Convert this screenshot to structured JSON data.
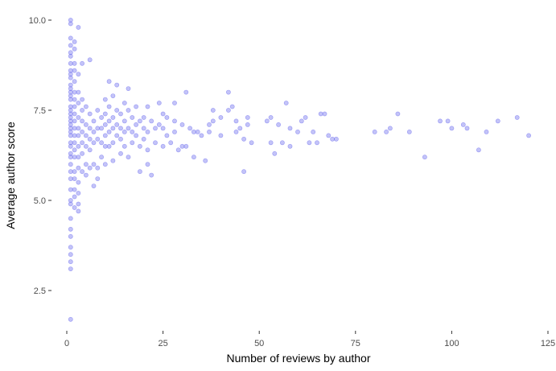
{
  "chart_data": {
    "type": "scatter",
    "title": "",
    "xlabel": "Number of reviews by author",
    "ylabel": "Average author score",
    "xlim": [
      0,
      125
    ],
    "ylim": [
      1.5,
      10.0
    ],
    "grid": false,
    "x_ticks": [
      0,
      25,
      50,
      75,
      100,
      125
    ],
    "x_tick_labels": [
      "0",
      "25",
      "50",
      "75",
      "100",
      "125"
    ],
    "y_ticks": [
      2.5,
      5.0,
      7.5,
      10.0
    ],
    "y_tick_labels": [
      "2.5",
      "5.0",
      "7.5",
      "10.0"
    ],
    "point_color": "#6a6aee",
    "series": [
      {
        "name": "authors",
        "points": [
          [
            1,
            10.0
          ],
          [
            1,
            9.9
          ],
          [
            1,
            9.5
          ],
          [
            1,
            9.3
          ],
          [
            1,
            9.1
          ],
          [
            1,
            9.0
          ],
          [
            1,
            8.8
          ],
          [
            1,
            8.6
          ],
          [
            1,
            8.5
          ],
          [
            1,
            8.4
          ],
          [
            1,
            8.2
          ],
          [
            1,
            8.1
          ],
          [
            1,
            8.0
          ],
          [
            1,
            7.9
          ],
          [
            1,
            7.8
          ],
          [
            1,
            7.6
          ],
          [
            1,
            7.5
          ],
          [
            1,
            7.4
          ],
          [
            1,
            7.3
          ],
          [
            1,
            7.2
          ],
          [
            1,
            7.1
          ],
          [
            1,
            7.0
          ],
          [
            1,
            6.9
          ],
          [
            1,
            6.8
          ],
          [
            1,
            6.6
          ],
          [
            1,
            6.5
          ],
          [
            1,
            6.3
          ],
          [
            1,
            6.2
          ],
          [
            1,
            6.0
          ],
          [
            1,
            5.8
          ],
          [
            1,
            5.6
          ],
          [
            1,
            5.3
          ],
          [
            1,
            5.0
          ],
          [
            1,
            4.9
          ],
          [
            1,
            4.5
          ],
          [
            1,
            4.2
          ],
          [
            1,
            4.0
          ],
          [
            1,
            3.7
          ],
          [
            1,
            3.5
          ],
          [
            1,
            3.3
          ],
          [
            1,
            3.1
          ],
          [
            1,
            1.7
          ],
          [
            2,
            9.4
          ],
          [
            2,
            9.2
          ],
          [
            2,
            8.8
          ],
          [
            2,
            8.6
          ],
          [
            2,
            8.3
          ],
          [
            2,
            8.0
          ],
          [
            2,
            7.8
          ],
          [
            2,
            7.6
          ],
          [
            2,
            7.4
          ],
          [
            2,
            7.2
          ],
          [
            2,
            7.0
          ],
          [
            2,
            6.8
          ],
          [
            2,
            6.6
          ],
          [
            2,
            6.4
          ],
          [
            2,
            6.2
          ],
          [
            2,
            5.8
          ],
          [
            2,
            5.6
          ],
          [
            2,
            5.3
          ],
          [
            2,
            5.1
          ],
          [
            2,
            4.8
          ],
          [
            3,
            9.8
          ],
          [
            3,
            8.5
          ],
          [
            3,
            8.0
          ],
          [
            3,
            7.7
          ],
          [
            3,
            7.3
          ],
          [
            3,
            7.0
          ],
          [
            3,
            6.8
          ],
          [
            3,
            6.5
          ],
          [
            3,
            6.2
          ],
          [
            3,
            5.9
          ],
          [
            3,
            5.5
          ],
          [
            3,
            5.2
          ],
          [
            3,
            4.9
          ],
          [
            3,
            4.7
          ],
          [
            4,
            8.8
          ],
          [
            4,
            7.8
          ],
          [
            4,
            7.5
          ],
          [
            4,
            7.2
          ],
          [
            4,
            6.9
          ],
          [
            4,
            6.6
          ],
          [
            4,
            6.3
          ],
          [
            4,
            5.8
          ],
          [
            5,
            7.6
          ],
          [
            5,
            7.1
          ],
          [
            5,
            6.8
          ],
          [
            5,
            6.5
          ],
          [
            5,
            6.0
          ],
          [
            5,
            5.7
          ],
          [
            6,
            8.9
          ],
          [
            6,
            7.4
          ],
          [
            6,
            7.0
          ],
          [
            6,
            6.7
          ],
          [
            6,
            6.4
          ],
          [
            6,
            5.9
          ],
          [
            7,
            7.2
          ],
          [
            7,
            6.9
          ],
          [
            7,
            6.6
          ],
          [
            7,
            6.0
          ],
          [
            7,
            5.4
          ],
          [
            8,
            7.5
          ],
          [
            8,
            7.0
          ],
          [
            8,
            6.7
          ],
          [
            8,
            5.9
          ],
          [
            8,
            5.6
          ],
          [
            9,
            7.3
          ],
          [
            9,
            7.0
          ],
          [
            9,
            6.6
          ],
          [
            9,
            6.2
          ],
          [
            10,
            7.8
          ],
          [
            10,
            7.4
          ],
          [
            10,
            7.1
          ],
          [
            10,
            6.8
          ],
          [
            10,
            6.5
          ],
          [
            10,
            6.0
          ],
          [
            11,
            8.3
          ],
          [
            11,
            7.6
          ],
          [
            11,
            7.2
          ],
          [
            11,
            6.9
          ],
          [
            11,
            6.5
          ],
          [
            12,
            7.9
          ],
          [
            12,
            7.3
          ],
          [
            12,
            7.0
          ],
          [
            12,
            6.6
          ],
          [
            12,
            6.1
          ],
          [
            13,
            8.2
          ],
          [
            13,
            7.5
          ],
          [
            13,
            7.1
          ],
          [
            13,
            6.8
          ],
          [
            14,
            7.4
          ],
          [
            14,
            7.0
          ],
          [
            14,
            6.7
          ],
          [
            14,
            6.3
          ],
          [
            15,
            7.7
          ],
          [
            15,
            7.2
          ],
          [
            15,
            6.9
          ],
          [
            15,
            6.5
          ],
          [
            16,
            8.1
          ],
          [
            16,
            7.5
          ],
          [
            16,
            7.0
          ],
          [
            16,
            6.2
          ],
          [
            17,
            7.3
          ],
          [
            17,
            6.9
          ],
          [
            17,
            6.6
          ],
          [
            18,
            7.6
          ],
          [
            18,
            7.1
          ],
          [
            18,
            6.8
          ],
          [
            19,
            7.2
          ],
          [
            19,
            6.5
          ],
          [
            19,
            5.8
          ],
          [
            20,
            7.3
          ],
          [
            20,
            7.0
          ],
          [
            20,
            6.7
          ],
          [
            21,
            7.6
          ],
          [
            21,
            6.9
          ],
          [
            21,
            6.4
          ],
          [
            21,
            6.0
          ],
          [
            22,
            7.2
          ],
          [
            22,
            5.7
          ],
          [
            23,
            7.0
          ],
          [
            23,
            6.6
          ],
          [
            24,
            7.7
          ],
          [
            24,
            7.1
          ],
          [
            25,
            7.4
          ],
          [
            25,
            7.0
          ],
          [
            25,
            6.5
          ],
          [
            26,
            7.3
          ],
          [
            26,
            6.8
          ],
          [
            27,
            6.6
          ],
          [
            28,
            7.7
          ],
          [
            28,
            7.2
          ],
          [
            28,
            6.9
          ],
          [
            29,
            6.4
          ],
          [
            30,
            7.1
          ],
          [
            30,
            6.5
          ],
          [
            31,
            8.0
          ],
          [
            31,
            6.5
          ],
          [
            32,
            7.0
          ],
          [
            33,
            6.9
          ],
          [
            33,
            6.2
          ],
          [
            34,
            6.9
          ],
          [
            35,
            6.8
          ],
          [
            36,
            6.1
          ],
          [
            37,
            7.1
          ],
          [
            37,
            6.9
          ],
          [
            38,
            7.5
          ],
          [
            38,
            7.2
          ],
          [
            40,
            7.3
          ],
          [
            40,
            6.8
          ],
          [
            42,
            8.0
          ],
          [
            42,
            7.5
          ],
          [
            43,
            7.6
          ],
          [
            44,
            7.2
          ],
          [
            44,
            6.9
          ],
          [
            45,
            7.0
          ],
          [
            46,
            6.7
          ],
          [
            46,
            5.8
          ],
          [
            47,
            7.3
          ],
          [
            47,
            7.1
          ],
          [
            48,
            6.6
          ],
          [
            52,
            7.2
          ],
          [
            53,
            6.6
          ],
          [
            53,
            7.3
          ],
          [
            54,
            6.3
          ],
          [
            55,
            7.1
          ],
          [
            56,
            6.6
          ],
          [
            57,
            7.7
          ],
          [
            58,
            7.0
          ],
          [
            58,
            6.5
          ],
          [
            60,
            6.9
          ],
          [
            61,
            7.2
          ],
          [
            62,
            7.3
          ],
          [
            63,
            6.6
          ],
          [
            64,
            6.9
          ],
          [
            65,
            6.6
          ],
          [
            66,
            7.4
          ],
          [
            67,
            7.4
          ],
          [
            68,
            6.8
          ],
          [
            69,
            6.7
          ],
          [
            70,
            6.7
          ],
          [
            80,
            6.9
          ],
          [
            83,
            6.9
          ],
          [
            84,
            7.0
          ],
          [
            86,
            7.4
          ],
          [
            89,
            6.9
          ],
          [
            93,
            6.2
          ],
          [
            97,
            7.2
          ],
          [
            99,
            7.2
          ],
          [
            100,
            7.0
          ],
          [
            103,
            7.1
          ],
          [
            104,
            7.0
          ],
          [
            107,
            6.4
          ],
          [
            109,
            6.9
          ],
          [
            112,
            7.2
          ],
          [
            117,
            7.3
          ],
          [
            120,
            6.8
          ]
        ]
      }
    ]
  }
}
